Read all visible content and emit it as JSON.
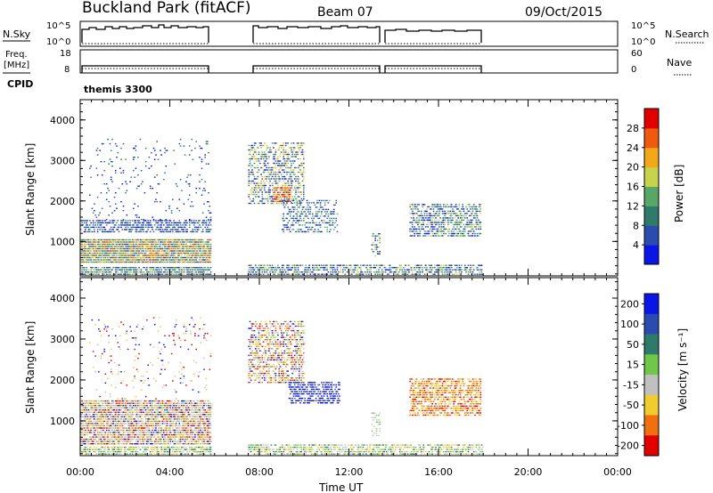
{
  "header": {
    "site": "Buckland Park (fitACF)",
    "beam": "Beam 07",
    "date": "09/Oct/2015"
  },
  "aux_panels": {
    "nsky_label": "N.Sky",
    "nsky_ticks": [
      "10^5",
      "10^0"
    ],
    "nsearch_label": "N.Search",
    "nsearch_ticks": [
      "10^5",
      "10^0"
    ],
    "freq_label_1": "Freq.",
    "freq_label_2": "[MHz]",
    "freq_ticks": [
      "18",
      "8"
    ],
    "nave_label": "Nave",
    "nave_ticks": [
      "60",
      "0"
    ],
    "cpid_label": "CPID",
    "cpid_value": "themis 3300"
  },
  "chart_data": [
    {
      "type": "heatmap",
      "name": "power",
      "ylabel": "Slant Range [km]",
      "yticks": [
        1000,
        2000,
        3000,
        4000
      ],
      "ylim": [
        150,
        4500
      ],
      "colorbar": {
        "label": "Power [dB]",
        "ticks": [
          "4",
          "8",
          "12",
          "16",
          "20",
          "24",
          "28"
        ],
        "colors": [
          "#0a16e6",
          "#2b4bb0",
          "#2f7a6a",
          "#57a866",
          "#c8d24a",
          "#f2a818",
          "#f05a0e",
          "#e00000"
        ]
      },
      "data_gaps_ut": [
        [
          5.75,
          7.6
        ],
        [
          13.3,
          13.6
        ]
      ],
      "regions": [
        {
          "t": [
            0.0,
            5.8
          ],
          "r": [
            1200,
            1500
          ],
          "density": 0.55,
          "levels": [
            1,
            2,
            0
          ]
        },
        {
          "t": [
            0.0,
            5.8
          ],
          "r": [
            450,
            1050
          ],
          "density": 0.9,
          "levels": [
            2,
            3,
            4,
            3,
            1,
            5,
            6
          ]
        },
        {
          "t": [
            0.0,
            5.8
          ],
          "r": [
            150,
            350
          ],
          "density": 0.75,
          "levels": [
            1,
            2,
            3,
            4,
            1
          ]
        },
        {
          "t": [
            0.4,
            5.8
          ],
          "r": [
            1500,
            3500
          ],
          "density": 0.05,
          "levels": [
            0,
            1,
            2
          ]
        },
        {
          "t": [
            7.5,
            10.0
          ],
          "r": [
            1900,
            3400
          ],
          "density": 0.45,
          "levels": [
            1,
            2,
            3,
            4,
            5,
            0
          ]
        },
        {
          "t": [
            8.6,
            9.4
          ],
          "r": [
            1950,
            2300
          ],
          "density": 0.7,
          "levels": [
            5,
            6,
            7
          ]
        },
        {
          "t": [
            9.0,
            11.5
          ],
          "r": [
            1200,
            2000
          ],
          "density": 0.35,
          "levels": [
            1,
            2,
            3,
            0
          ]
        },
        {
          "t": [
            7.5,
            18.0
          ],
          "r": [
            150,
            400
          ],
          "density": 0.55,
          "levels": [
            0,
            1,
            2,
            3,
            4
          ]
        },
        {
          "t": [
            13.0,
            13.4
          ],
          "r": [
            600,
            1200
          ],
          "density": 0.4,
          "levels": [
            2,
            3,
            4,
            0
          ]
        },
        {
          "t": [
            14.7,
            17.9
          ],
          "r": [
            1100,
            1900
          ],
          "density": 0.55,
          "levels": [
            1,
            2,
            3,
            4,
            0
          ]
        }
      ]
    },
    {
      "type": "heatmap",
      "name": "velocity",
      "xlabel": "Time UT",
      "xticks": [
        "00:00",
        "04:00",
        "08:00",
        "12:00",
        "16:00",
        "20:00",
        "00:00"
      ],
      "xlim": [
        0,
        24
      ],
      "ylabel": "Slant Range [km]",
      "yticks": [
        1000,
        2000,
        3000,
        4000
      ],
      "ylim": [
        150,
        4500
      ],
      "colorbar": {
        "label": "Velocity [m s⁻¹]",
        "ticks": [
          "200",
          "100",
          "50",
          "15",
          "-15",
          "-50",
          "-100",
          "-200"
        ],
        "colors": [
          "#0a16e6",
          "#2b4bb0",
          "#2f7a6a",
          "#70c84a",
          "#c0c0c0",
          "#f0cc30",
          "#f07010",
          "#e00000"
        ]
      },
      "data_gaps_ut": [
        [
          5.75,
          7.6
        ],
        [
          13.3,
          13.6
        ]
      ],
      "regions": [
        {
          "t": [
            0.0,
            5.8
          ],
          "r": [
            400,
            1500
          ],
          "density": 0.8,
          "levels": [
            4,
            4,
            4,
            5,
            3,
            7,
            0,
            6
          ]
        },
        {
          "t": [
            0.0,
            5.8
          ],
          "r": [
            150,
            350
          ],
          "density": 0.65,
          "levels": [
            3,
            4,
            5,
            2
          ]
        },
        {
          "t": [
            0.4,
            5.8
          ],
          "r": [
            1500,
            3500
          ],
          "density": 0.05,
          "levels": [
            0,
            7,
            5,
            4
          ]
        },
        {
          "t": [
            7.5,
            10.0
          ],
          "r": [
            1900,
            3400
          ],
          "density": 0.45,
          "levels": [
            4,
            5,
            6,
            3,
            7,
            0
          ]
        },
        {
          "t": [
            9.3,
            11.6
          ],
          "r": [
            1400,
            1950
          ],
          "density": 0.55,
          "levels": [
            0,
            1,
            0
          ]
        },
        {
          "t": [
            7.5,
            18.0
          ],
          "r": [
            150,
            400
          ],
          "density": 0.55,
          "levels": [
            3,
            4,
            2,
            5
          ]
        },
        {
          "t": [
            13.0,
            13.4
          ],
          "r": [
            600,
            1200
          ],
          "density": 0.4,
          "levels": [
            4,
            3
          ]
        },
        {
          "t": [
            14.7,
            17.9
          ],
          "r": [
            1100,
            2000
          ],
          "density": 0.6,
          "levels": [
            5,
            6,
            6,
            5,
            7
          ]
        }
      ]
    }
  ]
}
